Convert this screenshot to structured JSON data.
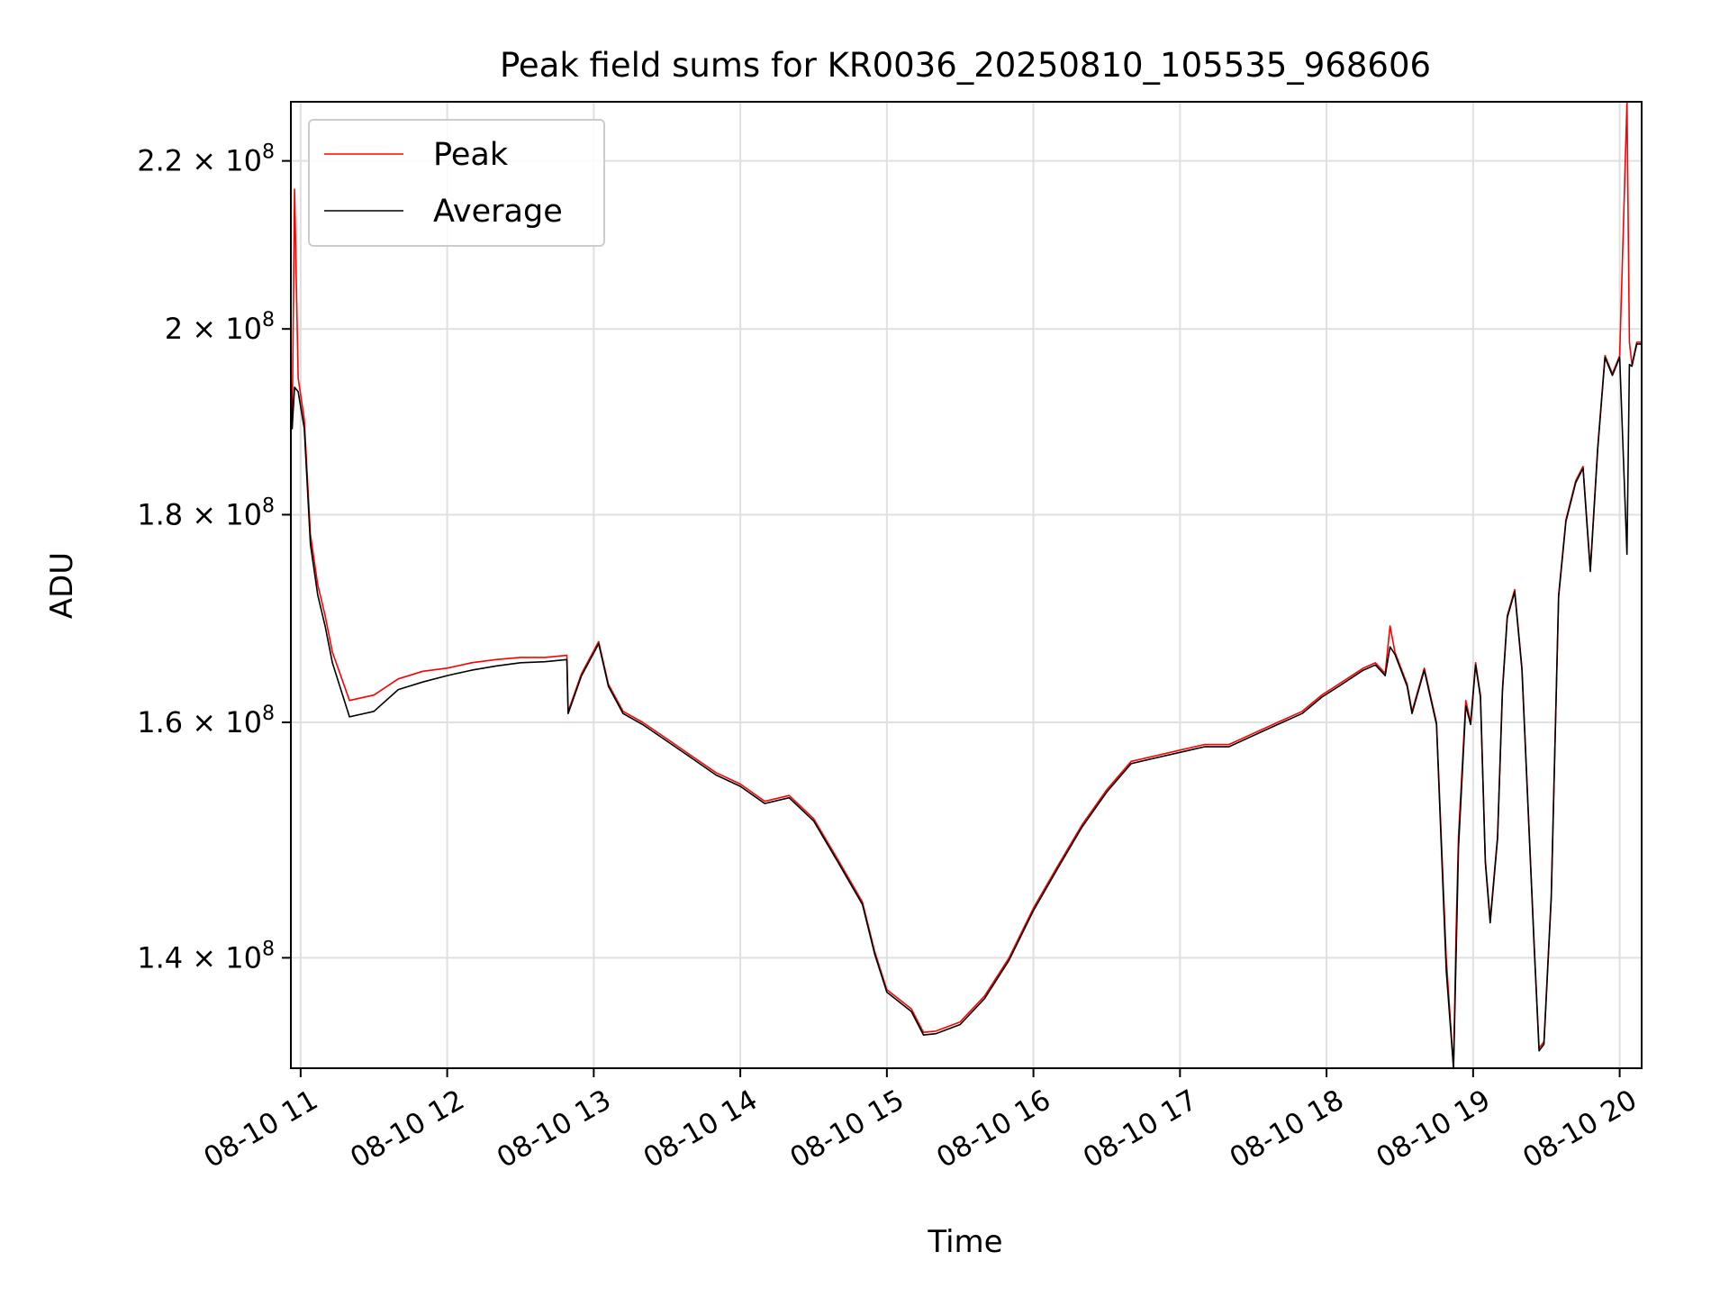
{
  "chart_data": {
    "type": "line",
    "title": "Peak field sums for KR0036_20250810_105535_968606",
    "xlabel": "Time",
    "ylabel": "ADU",
    "xlim": [
      "2025-08-10 10:56",
      "2025-08-10 20:09"
    ],
    "ylim": [
      131500000,
      227500000
    ],
    "yscale": "log",
    "grid": true,
    "legend": "upper left",
    "x_ticks": [
      "08-10 11",
      "08-10 12",
      "08-10 13",
      "08-10 14",
      "08-10 15",
      "08-10 16",
      "08-10 17",
      "08-10 18",
      "08-10 19",
      "08-10 20"
    ],
    "y_ticks": [
      {
        "value": 140000000,
        "mantissa": "1.4",
        "times": "×",
        "base": "10",
        "exp": "8"
      },
      {
        "value": 160000000,
        "mantissa": "1.6",
        "times": "×",
        "base": "10",
        "exp": "8"
      },
      {
        "value": 180000000,
        "mantissa": "1.8",
        "times": "×",
        "base": "10",
        "exp": "8"
      },
      {
        "value": 200000000,
        "mantissa": "2",
        "times": "×",
        "base": "10",
        "exp": "8"
      },
      {
        "value": 220000000,
        "mantissa": "2.2",
        "times": "×",
        "base": "10",
        "exp": "8"
      }
    ],
    "x": [
      "10:55:35",
      "10:56:30",
      "10:57:30",
      "10:59:00",
      "11:01:30",
      "11:04:00",
      "11:07:00",
      "11:10:00",
      "11:13:00",
      "11:20:00",
      "11:30:00",
      "11:40:00",
      "11:50:00",
      "12:00:00",
      "12:10:00",
      "12:20:00",
      "12:30:00",
      "12:40:00",
      "12:49:00",
      "12:49:30",
      "12:55:00",
      "13:02:00",
      "13:06:00",
      "13:12:00",
      "13:20:00",
      "13:30:00",
      "13:40:00",
      "13:50:00",
      "14:00:00",
      "14:10:00",
      "14:20:00",
      "14:30:00",
      "14:40:00",
      "14:50:00",
      "14:55:00",
      "15:00:00",
      "15:10:00",
      "15:15:00",
      "15:20:00",
      "15:30:00",
      "15:40:00",
      "15:50:00",
      "16:00:00",
      "16:10:00",
      "16:20:00",
      "16:30:00",
      "16:40:00",
      "16:50:00",
      "17:00:00",
      "17:10:00",
      "17:20:00",
      "17:30:00",
      "17:40:00",
      "17:50:00",
      "17:58:00",
      "18:05:00",
      "18:15:00",
      "18:20:00",
      "18:24:00",
      "18:26:00",
      "18:28:00",
      "18:33:00",
      "18:35:00",
      "18:40:00",
      "18:45:00",
      "18:49:00",
      "18:52:00",
      "18:53:00",
      "18:54:00",
      "18:57:00",
      "18:59:00",
      "19:01:00",
      "19:03:00",
      "19:05:00",
      "19:07:00",
      "19:10:00",
      "19:12:00",
      "19:14:00",
      "19:17:00",
      "19:20:00",
      "19:25:00",
      "19:27:00",
      "19:29:00",
      "19:32:00",
      "19:35:00",
      "19:38:00",
      "19:42:00",
      "19:45:00",
      "19:48:00",
      "19:51:00",
      "19:54:00",
      "19:57:00",
      "20:00:00",
      "20:03:00",
      "20:04:00",
      "20:05:00",
      "20:07:00",
      "20:09:00"
    ],
    "series": [
      {
        "name": "Peak",
        "color": "#ff0000",
        "values": [
          200000000,
          189000000,
          216500000,
          194500000,
          190000000,
          178000000,
          173000000,
          170000000,
          166500000,
          162000000,
          162500000,
          164000000,
          164700000,
          165000000,
          165500000,
          165800000,
          166000000,
          166000000,
          166200000,
          161000000,
          164500000,
          167500000,
          163500000,
          161000000,
          160000000,
          158500000,
          157000000,
          155500000,
          154500000,
          153000000,
          153500000,
          151500000,
          148000000,
          144500000,
          140500000,
          137500000,
          136000000,
          134200000,
          134300000,
          135000000,
          137000000,
          140000000,
          144000000,
          147500000,
          151000000,
          154000000,
          156500000,
          157000000,
          157500000,
          158000000,
          158000000,
          159000000,
          160000000,
          161000000,
          162500000,
          163500000,
          165000000,
          165500000,
          164500000,
          169000000,
          166500000,
          163500000,
          161000000,
          165000000,
          160000000,
          140000000,
          131500000,
          142000000,
          150000000,
          162000000,
          160000000,
          165500000,
          162500000,
          148000000,
          143000000,
          150000000,
          163000000,
          170000000,
          172500000,
          165000000,
          141000000,
          133000000,
          133500000,
          145000000,
          172000000,
          179500000,
          183500000,
          185000000,
          174500000,
          187000000,
          197000000,
          195000000,
          197000000,
          227500000,
          198500000,
          196000000,
          198500000,
          198500000
        ]
      },
      {
        "name": "Average",
        "color": "#000000",
        "values": [
          200000000,
          189000000,
          193500000,
          193000000,
          189000000,
          177000000,
          172000000,
          169000000,
          165500000,
          160500000,
          161000000,
          163000000,
          163700000,
          164300000,
          164800000,
          165200000,
          165500000,
          165600000,
          165800000,
          160800000,
          164300000,
          167300000,
          163300000,
          160800000,
          159800000,
          158300000,
          156800000,
          155300000,
          154300000,
          152800000,
          153300000,
          151300000,
          147800000,
          144300000,
          140300000,
          137300000,
          135800000,
          134000000,
          134100000,
          134800000,
          136800000,
          139800000,
          143800000,
          147300000,
          150800000,
          153800000,
          156300000,
          156800000,
          157300000,
          157800000,
          157800000,
          158800000,
          159800000,
          160800000,
          162300000,
          163300000,
          164800000,
          165300000,
          164300000,
          167000000,
          166300000,
          163300000,
          160800000,
          164800000,
          159800000,
          139000000,
          131500000,
          140000000,
          149000000,
          161500000,
          159800000,
          165300000,
          162300000,
          147800000,
          142800000,
          149800000,
          162800000,
          169800000,
          172300000,
          164800000,
          140800000,
          132800000,
          133300000,
          144800000,
          171800000,
          179300000,
          183300000,
          184800000,
          174300000,
          186800000,
          196800000,
          194800000,
          196800000,
          176000000,
          196000000,
          195800000,
          198300000,
          198300000
        ]
      }
    ]
  }
}
